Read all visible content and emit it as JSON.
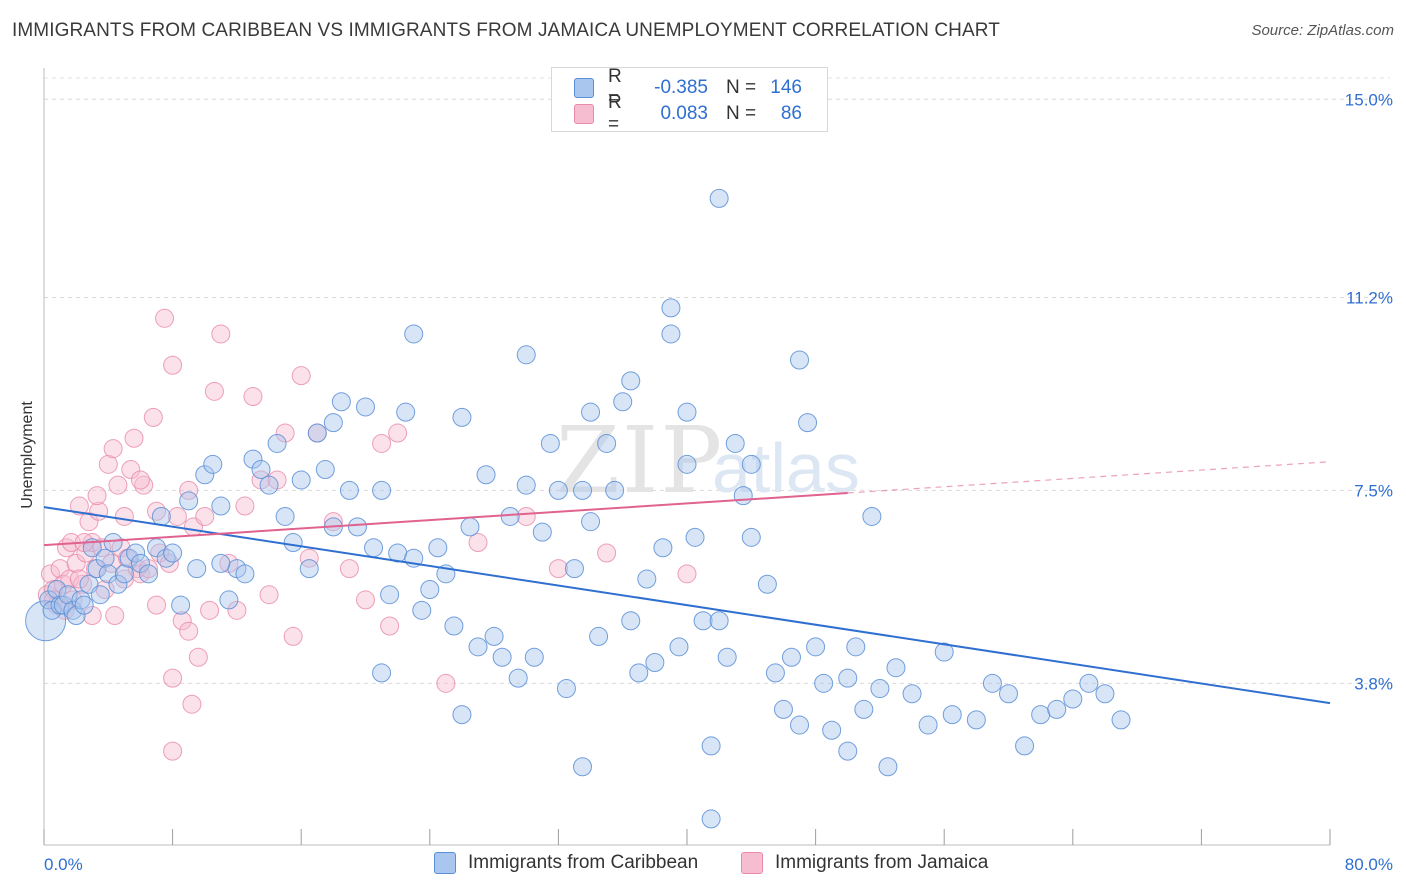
{
  "title": "IMMIGRANTS FROM CARIBBEAN VS IMMIGRANTS FROM JAMAICA UNEMPLOYMENT CORRELATION CHART",
  "source": "Source: ZipAtlas.com",
  "watermark": {
    "zip": "ZIP",
    "atlas": "atlas"
  },
  "legend": {
    "rows": [
      {
        "r_label": "R =",
        "r_value": "-0.385",
        "n_label": "N =",
        "n_value": "146"
      },
      {
        "r_label": "R =",
        "r_value": "0.083",
        "n_label": "N =",
        "n_value": "86"
      }
    ]
  },
  "bottom_legend": {
    "caribbean": "Immigrants from Caribbean",
    "jamaica": "Immigrants from Jamaica"
  },
  "chart_data": {
    "type": "scatter",
    "title": "IMMIGRANTS FROM CARIBBEAN VS IMMIGRANTS FROM JAMAICA UNEMPLOYMENT CORRELATION CHART",
    "xlabel": "",
    "ylabel": "Unemployment",
    "xlim": [
      0,
      80
    ],
    "ylim": [
      0.7,
      15.6
    ],
    "x_tick_labels": [
      "0.0%",
      "80.0%"
    ],
    "y_ticks": [
      3.8,
      7.5,
      11.2,
      15.0
    ],
    "y_tick_labels": [
      "3.8%",
      "7.5%",
      "11.2%",
      "15.0%"
    ],
    "grid": true,
    "legend_position": "top-center",
    "colors": {
      "caribbean_fill": "#a9c6ee",
      "caribbean_stroke": "#5b8fd6",
      "caribbean_line": "#2f6fd0",
      "jamaica_fill": "#f6bcd0",
      "jamaica_stroke": "#e88aa8",
      "jamaica_line": "#e0628f",
      "axis_label": "#2f6fd0"
    },
    "series": [
      {
        "name": "Immigrants from Caribbean",
        "trend": {
          "x": [
            0,
            80
          ],
          "y": [
            7.18,
            3.42
          ]
        },
        "points": [
          [
            0.1,
            5.0
          ],
          [
            0.3,
            5.4
          ],
          [
            0.5,
            5.2
          ],
          [
            0.8,
            5.6
          ],
          [
            1.0,
            5.3
          ],
          [
            1.2,
            5.3
          ],
          [
            1.5,
            5.5
          ],
          [
            1.8,
            5.2
          ],
          [
            2.0,
            5.1
          ],
          [
            2.3,
            5.4
          ],
          [
            2.5,
            5.3
          ],
          [
            2.8,
            5.7
          ],
          [
            3.0,
            6.4
          ],
          [
            3.3,
            6.0
          ],
          [
            3.5,
            5.5
          ],
          [
            3.8,
            6.2
          ],
          [
            4.0,
            5.9
          ],
          [
            4.3,
            6.5
          ],
          [
            4.6,
            5.7
          ],
          [
            5.0,
            5.9
          ],
          [
            5.3,
            6.2
          ],
          [
            5.7,
            6.3
          ],
          [
            6.0,
            6.1
          ],
          [
            6.5,
            5.9
          ],
          [
            7.0,
            6.4
          ],
          [
            7.3,
            7.0
          ],
          [
            7.6,
            6.2
          ],
          [
            8.0,
            6.3
          ],
          [
            8.5,
            5.3
          ],
          [
            9.0,
            7.3
          ],
          [
            9.5,
            6.0
          ],
          [
            10.0,
            7.8
          ],
          [
            10.5,
            8.0
          ],
          [
            11.0,
            7.2
          ],
          [
            11.5,
            5.4
          ],
          [
            12.0,
            6.0
          ],
          [
            12.5,
            5.9
          ],
          [
            13.0,
            8.1
          ],
          [
            13.5,
            7.9
          ],
          [
            14.0,
            7.6
          ],
          [
            14.5,
            8.4
          ],
          [
            15.0,
            7.0
          ],
          [
            15.5,
            6.5
          ],
          [
            16.0,
            7.7
          ],
          [
            16.5,
            6.0
          ],
          [
            17.0,
            8.6
          ],
          [
            17.5,
            7.9
          ],
          [
            18.0,
            6.8
          ],
          [
            18.5,
            9.2
          ],
          [
            19.0,
            7.5
          ],
          [
            19.5,
            6.8
          ],
          [
            20.0,
            9.1
          ],
          [
            20.5,
            6.4
          ],
          [
            21.0,
            7.5
          ],
          [
            21.5,
            5.5
          ],
          [
            22.0,
            6.3
          ],
          [
            22.5,
            9.0
          ],
          [
            23.0,
            6.2
          ],
          [
            23.5,
            5.2
          ],
          [
            24.0,
            5.6
          ],
          [
            24.5,
            6.4
          ],
          [
            25.0,
            5.9
          ],
          [
            25.5,
            4.9
          ],
          [
            26.0,
            8.9
          ],
          [
            26.5,
            6.8
          ],
          [
            27.0,
            4.5
          ],
          [
            27.5,
            7.8
          ],
          [
            28.0,
            4.7
          ],
          [
            28.5,
            4.3
          ],
          [
            29.0,
            7.0
          ],
          [
            29.5,
            3.9
          ],
          [
            30.0,
            7.6
          ],
          [
            30.5,
            4.3
          ],
          [
            31.0,
            6.7
          ],
          [
            31.5,
            8.4
          ],
          [
            32.0,
            7.5
          ],
          [
            32.5,
            3.7
          ],
          [
            33.0,
            6.0
          ],
          [
            33.5,
            7.5
          ],
          [
            34.0,
            6.9
          ],
          [
            34.5,
            4.7
          ],
          [
            35.0,
            8.4
          ],
          [
            35.5,
            7.5
          ],
          [
            36.0,
            9.2
          ],
          [
            36.5,
            5.0
          ],
          [
            37.0,
            4.0
          ],
          [
            37.5,
            5.8
          ],
          [
            38.0,
            4.2
          ],
          [
            38.5,
            6.4
          ],
          [
            39.0,
            10.5
          ],
          [
            39.5,
            4.5
          ],
          [
            40.0,
            9.0
          ],
          [
            40.5,
            6.6
          ],
          [
            41.0,
            5.0
          ],
          [
            41.5,
            2.6
          ],
          [
            42.0,
            5.0
          ],
          [
            42.5,
            4.3
          ],
          [
            43.0,
            8.4
          ],
          [
            43.5,
            7.4
          ],
          [
            44.0,
            6.6
          ],
          [
            45.0,
            5.7
          ],
          [
            45.5,
            4.0
          ],
          [
            46.0,
            3.3
          ],
          [
            46.5,
            4.3
          ],
          [
            47.0,
            3.0
          ],
          [
            47.5,
            8.8
          ],
          [
            48.0,
            4.5
          ],
          [
            48.5,
            3.8
          ],
          [
            49.0,
            2.9
          ],
          [
            50.0,
            2.5
          ],
          [
            50.5,
            4.5
          ],
          [
            51.0,
            3.3
          ],
          [
            51.5,
            7.0
          ],
          [
            52.0,
            3.7
          ],
          [
            52.5,
            2.2
          ],
          [
            53.0,
            4.1
          ],
          [
            54.0,
            3.6
          ],
          [
            55.0,
            3.0
          ],
          [
            56.0,
            4.4
          ],
          [
            56.5,
            3.2
          ],
          [
            58.0,
            3.1
          ],
          [
            59.0,
            3.8
          ],
          [
            60.0,
            3.6
          ],
          [
            61.0,
            2.6
          ],
          [
            62.0,
            3.2
          ],
          [
            63.0,
            3.3
          ],
          [
            64.0,
            3.5
          ],
          [
            65.0,
            3.8
          ],
          [
            66.0,
            3.6
          ],
          [
            67.0,
            3.1
          ],
          [
            42.0,
            13.1
          ],
          [
            18.0,
            8.8
          ],
          [
            23.0,
            10.5
          ],
          [
            30.0,
            10.1
          ],
          [
            34.0,
            9.0
          ],
          [
            36.5,
            9.6
          ],
          [
            40.0,
            8.0
          ],
          [
            44.0,
            8.0
          ],
          [
            47.0,
            10.0
          ],
          [
            39.0,
            11.0
          ],
          [
            33.5,
            2.2
          ],
          [
            41.5,
            1.2
          ],
          [
            21.0,
            4.0
          ],
          [
            50.0,
            3.9
          ],
          [
            11.0,
            6.1
          ],
          [
            26.0,
            3.2
          ]
        ]
      },
      {
        "name": "Immigrants from Jamaica",
        "trend": {
          "x": [
            0,
            50
          ],
          "y": [
            6.45,
            7.45
          ]
        },
        "trend_extension": {
          "x": [
            50,
            80
          ],
          "y": [
            7.45,
            8.05
          ]
        },
        "points": [
          [
            0.2,
            5.5
          ],
          [
            0.4,
            5.9
          ],
          [
            0.6,
            5.6
          ],
          [
            0.8,
            5.3
          ],
          [
            1.0,
            6.0
          ],
          [
            1.2,
            5.7
          ],
          [
            1.4,
            6.4
          ],
          [
            1.6,
            5.8
          ],
          [
            1.8,
            5.4
          ],
          [
            2.0,
            6.1
          ],
          [
            2.2,
            7.2
          ],
          [
            2.4,
            5.7
          ],
          [
            2.6,
            6.3
          ],
          [
            2.8,
            6.9
          ],
          [
            3.0,
            6.5
          ],
          [
            3.2,
            6.0
          ],
          [
            3.4,
            7.1
          ],
          [
            3.6,
            6.4
          ],
          [
            3.8,
            5.6
          ],
          [
            4.0,
            8.0
          ],
          [
            4.2,
            6.1
          ],
          [
            4.4,
            5.1
          ],
          [
            4.6,
            7.6
          ],
          [
            4.8,
            6.4
          ],
          [
            5.0,
            5.8
          ],
          [
            5.2,
            6.2
          ],
          [
            5.4,
            7.9
          ],
          [
            5.6,
            8.5
          ],
          [
            5.8,
            6.0
          ],
          [
            6.0,
            5.9
          ],
          [
            6.2,
            7.6
          ],
          [
            6.5,
            6.0
          ],
          [
            6.8,
            8.9
          ],
          [
            7.0,
            5.3
          ],
          [
            7.2,
            6.3
          ],
          [
            7.5,
            10.8
          ],
          [
            7.8,
            6.1
          ],
          [
            8.0,
            9.9
          ],
          [
            8.3,
            7.0
          ],
          [
            8.6,
            5.0
          ],
          [
            9.0,
            7.5
          ],
          [
            9.3,
            6.8
          ],
          [
            9.6,
            4.3
          ],
          [
            10.0,
            7.0
          ],
          [
            10.3,
            5.2
          ],
          [
            10.6,
            9.4
          ],
          [
            11.0,
            10.5
          ],
          [
            11.5,
            6.1
          ],
          [
            12.0,
            5.2
          ],
          [
            12.5,
            7.2
          ],
          [
            13.0,
            9.3
          ],
          [
            13.5,
            7.7
          ],
          [
            14.0,
            5.5
          ],
          [
            14.5,
            7.7
          ],
          [
            15.0,
            8.6
          ],
          [
            15.5,
            4.7
          ],
          [
            16.0,
            9.7
          ],
          [
            16.5,
            6.2
          ],
          [
            17.0,
            8.6
          ],
          [
            18.0,
            6.9
          ],
          [
            19.0,
            6.0
          ],
          [
            20.0,
            5.4
          ],
          [
            21.0,
            8.4
          ],
          [
            21.5,
            4.9
          ],
          [
            22.0,
            8.6
          ],
          [
            8.0,
            2.5
          ],
          [
            9.2,
            3.4
          ],
          [
            3.0,
            5.1
          ],
          [
            2.2,
            5.8
          ],
          [
            0.6,
            5.4
          ],
          [
            1.3,
            5.2
          ],
          [
            1.7,
            6.5
          ],
          [
            2.5,
            6.5
          ],
          [
            3.3,
            7.4
          ],
          [
            4.3,
            8.3
          ],
          [
            5.0,
            7.0
          ],
          [
            6.0,
            7.7
          ],
          [
            7.0,
            7.1
          ],
          [
            8.0,
            3.9
          ],
          [
            9.0,
            4.8
          ],
          [
            25.0,
            3.8
          ],
          [
            27.0,
            6.5
          ],
          [
            30.0,
            7.0
          ],
          [
            32.0,
            6.0
          ],
          [
            35.0,
            6.3
          ],
          [
            40.0,
            5.9
          ]
        ]
      }
    ]
  }
}
